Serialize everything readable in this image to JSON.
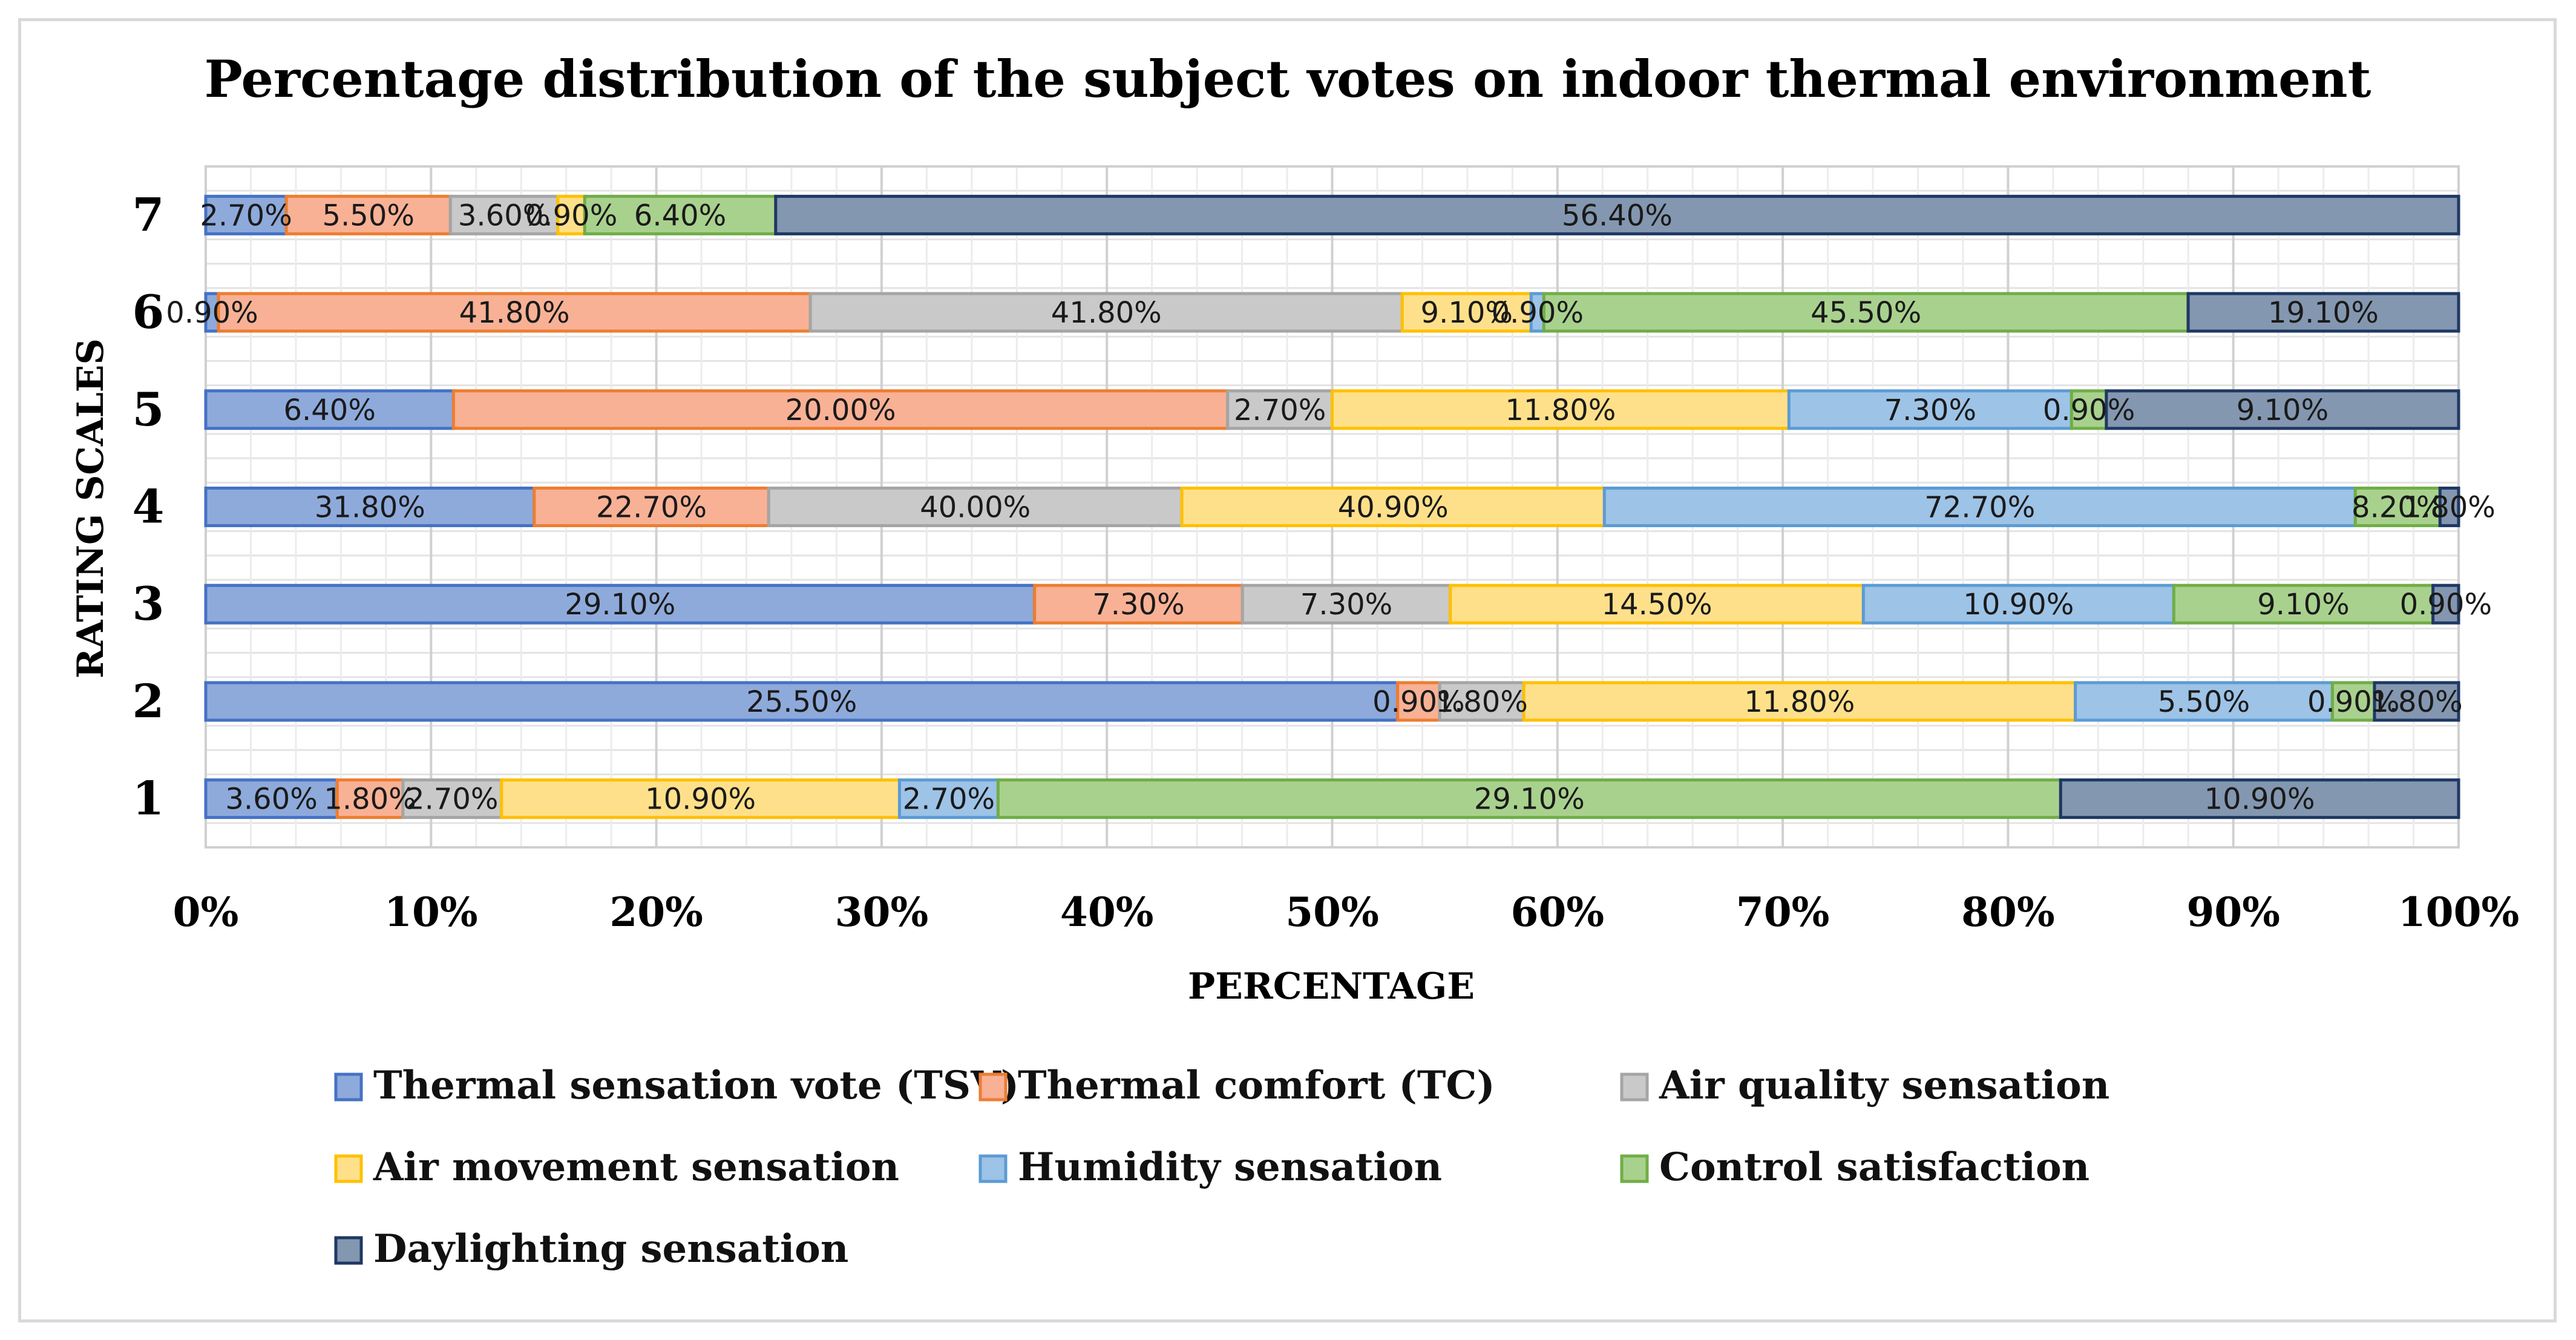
{
  "chart_data": {
    "type": "bar",
    "orientation": "horizontal",
    "stacked": "percent",
    "title": "Percentage distribution of the subject votes on indoor thermal environment",
    "xlabel": "PERCENTAGE",
    "ylabel": "RATING SCALES",
    "xlim": [
      0,
      100
    ],
    "x_ticks": [
      "0%",
      "10%",
      "20%",
      "30%",
      "40%",
      "50%",
      "60%",
      "70%",
      "80%",
      "90%",
      "100%"
    ],
    "grid": true,
    "legend_position": "bottom",
    "categories": [
      "1",
      "2",
      "3",
      "4",
      "5",
      "6",
      "7"
    ],
    "series": [
      {
        "name": "Thermal sensation vote (TSV)",
        "color": "#8eaadb",
        "border": "#4472c4",
        "values": [
          3.6,
          25.5,
          29.1,
          31.8,
          6.4,
          0.9,
          2.7
        ],
        "labels": [
          "3.60%",
          "25.50%",
          "29.10%",
          "31.80%",
          "6.40%",
          "0.90%",
          "2.70%"
        ]
      },
      {
        "name": "Thermal comfort (TC)",
        "color": "#f8b195",
        "border": "#ed7d31",
        "values": [
          1.8,
          0.9,
          7.3,
          22.7,
          20.0,
          41.8,
          5.5
        ],
        "labels": [
          "1.80%",
          "0.90%",
          "7.30%",
          "22.70%",
          "20.00%",
          "41.80%",
          "5.50%"
        ]
      },
      {
        "name": "Air quality sensation",
        "color": "#c9c9c9",
        "border": "#a5a5a5",
        "values": [
          2.7,
          1.8,
          7.3,
          40.0,
          2.7,
          41.8,
          3.6
        ],
        "labels": [
          "2.70%",
          "1.80%",
          "7.30%",
          "40.00%",
          "2.70%",
          "41.80%",
          "3.60%"
        ]
      },
      {
        "name": "Air movement sensation",
        "color": "#ffe08a",
        "border": "#ffc000",
        "values": [
          10.9,
          11.8,
          14.5,
          40.9,
          11.8,
          9.1,
          0.9
        ],
        "labels": [
          "10.90%",
          "11.80%",
          "14.50%",
          "40.90%",
          "11.80%",
          "9.10%",
          "0.90%"
        ]
      },
      {
        "name": "Humidity sensation",
        "color": "#9dc3e6",
        "border": "#5b9bd5",
        "values": [
          2.7,
          5.5,
          10.9,
          72.7,
          7.3,
          0.9,
          0
        ],
        "labels": [
          "2.70%",
          "5.50%",
          "10.90%",
          "72.70%",
          "7.30%",
          "0.90%",
          ""
        ]
      },
      {
        "name": "Control satisfaction",
        "color": "#a9d18e",
        "border": "#70ad47",
        "values": [
          29.1,
          0.9,
          9.1,
          8.2,
          0.9,
          45.5,
          6.4
        ],
        "labels": [
          "29.10%",
          "0.90%",
          "9.10%",
          "8.20%",
          "0.90%",
          "45.50%",
          "6.40%"
        ]
      },
      {
        "name": "Daylighting sensation",
        "color": "#8497b0",
        "border": "#1f3864",
        "values": [
          10.9,
          1.8,
          0.9,
          1.8,
          9.1,
          19.1,
          56.4
        ],
        "labels": [
          "10.90%",
          "1.80%",
          "0.90%",
          "1.80%",
          "9.10%",
          "19.10%",
          "56.40%"
        ]
      }
    ]
  }
}
